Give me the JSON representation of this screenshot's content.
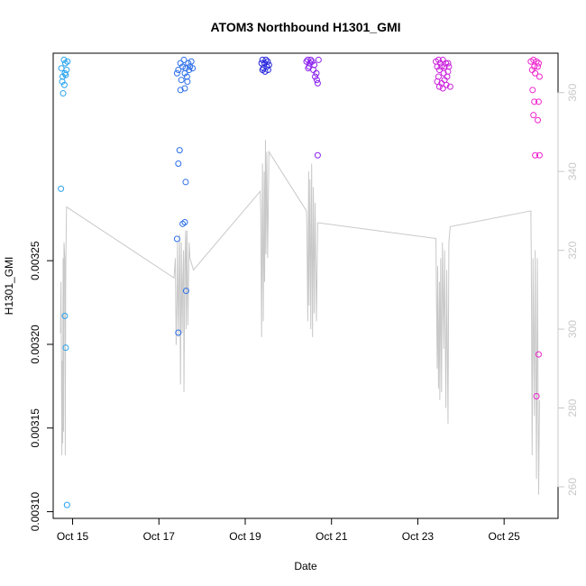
{
  "chart_data": {
    "type": "scatter",
    "title": "ATOM3 Northbound H1301_GMI",
    "xlabel": "Date",
    "ylabel": "H1301_GMI",
    "x_ticks": [
      "Oct 15",
      "Oct 17",
      "Oct 19",
      "Oct 21",
      "Oct 23",
      "Oct 25"
    ],
    "x_tick_days": [
      15,
      17,
      19,
      21,
      23,
      25
    ],
    "xlim": [
      14.55,
      26.25
    ],
    "ylim": [
      0.003096,
      0.003374
    ],
    "y_ticks": [
      "0.00310",
      "0.00315",
      "0.00320",
      "0.00325"
    ],
    "y_tick_values": [
      0.0031,
      0.00315,
      0.0032,
      0.00325
    ],
    "y2lim": [
      252,
      370
    ],
    "y2_ticks": [
      "260",
      "280",
      "300",
      "320",
      "340",
      "360"
    ],
    "y2_tick_values": [
      260,
      280,
      300,
      320,
      340,
      360
    ],
    "grid": false,
    "colors": {
      "axis": "#000000",
      "secondary_axis": "#c8c8c8",
      "line": "#c8c8c8"
    },
    "series": [
      {
        "type": "scatter",
        "axis": "left",
        "groups": [
          {
            "color": "#29a3ee",
            "points": [
              [
                14.74,
                0.003365
              ],
              [
                14.77,
                0.00336
              ],
              [
                14.8,
                0.00337
              ],
              [
                14.83,
                0.003368
              ],
              [
                14.76,
                0.003357
              ],
              [
                14.82,
                0.003362
              ],
              [
                14.78,
                0.00335
              ],
              [
                14.86,
                0.003364
              ],
              [
                14.81,
                0.003355
              ],
              [
                14.84,
                0.003361
              ],
              [
                14.88,
                0.003369
              ],
              [
                14.73,
                0.003293
              ],
              [
                14.82,
                0.003217
              ],
              [
                14.84,
                0.003198
              ],
              [
                14.87,
                0.003104
              ]
            ]
          },
          {
            "color": "#2b6ee8",
            "points": [
              [
                17.42,
                0.003362
              ],
              [
                17.45,
                0.003364
              ],
              [
                17.5,
                0.003368
              ],
              [
                17.52,
                0.003358
              ],
              [
                17.55,
                0.003366
              ],
              [
                17.58,
                0.00337
              ],
              [
                17.6,
                0.003362
              ],
              [
                17.62,
                0.003365
              ],
              [
                17.65,
                0.00336
              ],
              [
                17.68,
                0.003368
              ],
              [
                17.7,
                0.003364
              ],
              [
                17.72,
                0.003366
              ],
              [
                17.75,
                0.003369
              ],
              [
                17.78,
                0.003365
              ],
              [
                17.6,
                0.003353
              ],
              [
                17.66,
                0.003357
              ],
              [
                17.5,
                0.003352
              ],
              [
                17.48,
                0.003316
              ],
              [
                17.45,
                0.003308
              ],
              [
                17.62,
                0.003297
              ],
              [
                17.55,
                0.003272
              ],
              [
                17.6,
                0.003273
              ],
              [
                17.42,
                0.003263
              ],
              [
                17.63,
                0.003232
              ],
              [
                17.45,
                0.003207
              ]
            ]
          },
          {
            "color": "#2222dd",
            "points": [
              [
                19.38,
                0.003368
              ],
              [
                19.4,
                0.00337
              ],
              [
                19.42,
                0.003365
              ],
              [
                19.45,
                0.003368
              ],
              [
                19.48,
                0.00337
              ],
              [
                19.5,
                0.003366
              ],
              [
                19.52,
                0.003369
              ],
              [
                19.55,
                0.003367
              ],
              [
                19.4,
                0.003364
              ],
              [
                19.46,
                0.003363
              ],
              [
                19.53,
                0.003364
              ]
            ]
          },
          {
            "color": "#8a1fee",
            "points": [
              [
                20.42,
                0.003369
              ],
              [
                20.45,
                0.00337
              ],
              [
                20.48,
                0.003366
              ],
              [
                20.5,
                0.003368
              ],
              [
                20.55,
                0.003369
              ],
              [
                20.58,
                0.003364
              ],
              [
                20.6,
                0.003367
              ],
              [
                20.62,
                0.00336
              ],
              [
                20.65,
                0.003362
              ],
              [
                20.66,
                0.003358
              ],
              [
                20.68,
                0.003356
              ],
              [
                20.7,
                0.00337
              ],
              [
                20.46,
                0.003365
              ],
              [
                20.52,
                0.00337
              ],
              [
                20.68,
                0.003313
              ]
            ]
          },
          {
            "color": "#cc22dd",
            "points": [
              [
                23.42,
                0.003369
              ],
              [
                23.45,
                0.003366
              ],
              [
                23.48,
                0.00337
              ],
              [
                23.5,
                0.003364
              ],
              [
                23.52,
                0.003368
              ],
              [
                23.55,
                0.003366
              ],
              [
                23.58,
                0.00337
              ],
              [
                23.6,
                0.003362
              ],
              [
                23.62,
                0.003366
              ],
              [
                23.65,
                0.003368
              ],
              [
                23.68,
                0.00336
              ],
              [
                23.7,
                0.003363
              ],
              [
                23.72,
                0.003366
              ],
              [
                23.75,
                0.003354
              ],
              [
                23.45,
                0.003357
              ],
              [
                23.5,
                0.003354
              ],
              [
                23.55,
                0.003356
              ],
              [
                23.58,
                0.003353
              ],
              [
                23.62,
                0.003358
              ],
              [
                23.66,
                0.003355
              ],
              [
                23.48,
                0.00336
              ],
              [
                23.7,
                0.003368
              ]
            ]
          },
          {
            "color": "#ee22cc",
            "points": [
              [
                25.62,
                0.003369
              ],
              [
                25.65,
                0.003364
              ],
              [
                25.68,
                0.00337
              ],
              [
                25.7,
                0.003366
              ],
              [
                25.72,
                0.003362
              ],
              [
                25.75,
                0.003369
              ],
              [
                25.78,
                0.003366
              ],
              [
                25.8,
                0.003368
              ],
              [
                25.82,
                0.00336
              ],
              [
                25.66,
                0.003352
              ],
              [
                25.7,
                0.003345
              ],
              [
                25.8,
                0.003345
              ],
              [
                25.68,
                0.003337
              ],
              [
                25.72,
                0.003313
              ],
              [
                25.82,
                0.003313
              ],
              [
                25.78,
                0.003334
              ],
              [
                25.8,
                0.003194
              ],
              [
                25.75,
                0.003169
              ]
            ]
          }
        ]
      },
      {
        "type": "line",
        "axis": "right",
        "points": [
          [
            14.72,
            299
          ],
          [
            14.73,
            312
          ],
          [
            14.74,
            294
          ],
          [
            14.75,
            268
          ],
          [
            14.76,
            292
          ],
          [
            14.77,
            271
          ],
          [
            14.78,
            318
          ],
          [
            14.79,
            274
          ],
          [
            14.8,
            322
          ],
          [
            14.82,
            318
          ],
          [
            14.83,
            268
          ],
          [
            14.84,
            312
          ],
          [
            14.85,
            324
          ],
          [
            14.86,
            331
          ],
          [
            17.35,
            313
          ],
          [
            17.38,
            318
          ],
          [
            17.4,
            296
          ],
          [
            17.42,
            309
          ],
          [
            17.43,
            322
          ],
          [
            17.45,
            298
          ],
          [
            17.47,
            315
          ],
          [
            17.48,
            324
          ],
          [
            17.5,
            286
          ],
          [
            17.52,
            322
          ],
          [
            17.54,
            299
          ],
          [
            17.55,
            311
          ],
          [
            17.57,
            320
          ],
          [
            17.58,
            284
          ],
          [
            17.6,
            316
          ],
          [
            17.62,
            325
          ],
          [
            17.63,
            300
          ],
          [
            17.65,
            325
          ],
          [
            17.67,
            301
          ],
          [
            17.7,
            322
          ],
          [
            17.72,
            318
          ],
          [
            17.8,
            315
          ],
          [
            19.35,
            335
          ],
          [
            19.36,
            330
          ],
          [
            19.38,
            298
          ],
          [
            19.4,
            342
          ],
          [
            19.42,
            302
          ],
          [
            19.44,
            340
          ],
          [
            19.45,
            312
          ],
          [
            19.47,
            348
          ],
          [
            19.48,
            319
          ],
          [
            19.5,
            345
          ],
          [
            19.52,
            318
          ],
          [
            19.55,
            345
          ],
          [
            20.42,
            330
          ],
          [
            20.43,
            325
          ],
          [
            20.45,
            302
          ],
          [
            20.47,
            340
          ],
          [
            20.48,
            306
          ],
          [
            20.5,
            338
          ],
          [
            20.52,
            300
          ],
          [
            20.54,
            342
          ],
          [
            20.56,
            298
          ],
          [
            20.58,
            336
          ],
          [
            20.6,
            304
          ],
          [
            20.62,
            332
          ],
          [
            20.65,
            302
          ],
          [
            20.68,
            327
          ],
          [
            23.42,
            323
          ],
          [
            23.43,
            310
          ],
          [
            23.45,
            290
          ],
          [
            23.46,
            316
          ],
          [
            23.48,
            285
          ],
          [
            23.5,
            312
          ],
          [
            23.51,
            282
          ],
          [
            23.53,
            318
          ],
          [
            23.55,
            284
          ],
          [
            23.57,
            322
          ],
          [
            23.6,
            295
          ],
          [
            23.62,
            320
          ],
          [
            23.65,
            280
          ],
          [
            23.67,
            315
          ],
          [
            23.7,
            276
          ],
          [
            23.72,
            322
          ],
          [
            23.75,
            326
          ],
          [
            25.62,
            330
          ],
          [
            25.63,
            318
          ],
          [
            25.65,
            268
          ],
          [
            25.67,
            318
          ],
          [
            25.7,
            278
          ],
          [
            25.72,
            320
          ],
          [
            25.75,
            262
          ],
          [
            25.77,
            318
          ],
          [
            25.8,
            258
          ],
          [
            25.82,
            282
          ]
        ]
      }
    ]
  }
}
